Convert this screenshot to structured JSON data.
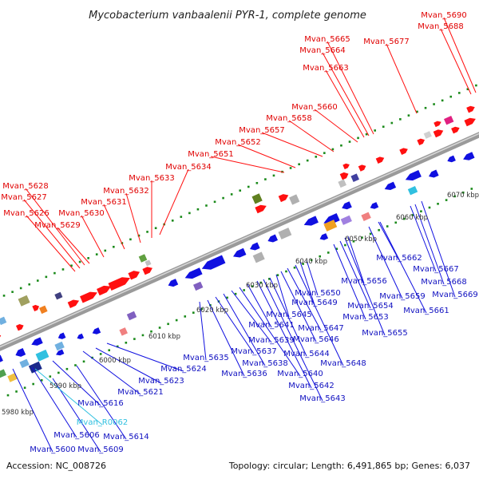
{
  "title": "Mycobacterium vanbaalenii PYR-1, complete genome",
  "footer": {
    "accession": "Accession: NC_008726",
    "summary": "Topology: circular; Length: 6,491,865 bp; Genes: 6,037"
  },
  "ticks": [
    "5980 kbp",
    "5990 kbp",
    "6000 kbp",
    "6010 kbp",
    "6020 kbp",
    "6030 kbp",
    "6040 kbp",
    "6050 kbp",
    "6060 kbp",
    "6070 kbp"
  ],
  "top_labels": [
    "Mvan_5626",
    "Mvan_5627",
    "Mvan_5628",
    "Mvan_5629",
    "Mvan_5630",
    "Mvan_5631",
    "Mvan_5632",
    "Mvan_5633",
    "Mvan_5634",
    "Mvan_5651",
    "Mvan_5652",
    "Mvan_5657",
    "Mvan_5658",
    "Mvan_5660",
    "Mvan_5663",
    "Mvan_5664",
    "Mvan_5665",
    "Mvan_5677",
    "Mvan_5688",
    "Mvan_5690"
  ],
  "bottom_labels": [
    "Mvan_5600",
    "Mvan_5606",
    "Mvan_5609",
    "Mvan_5614",
    "Mvan_5616",
    "Mvan_5621",
    "Mvan_5623",
    "Mvan_5624",
    "Mvan_5635",
    "Mvan_5636",
    "Mvan_5637",
    "Mvan_5638",
    "Mvan_5639",
    "Mvan_5640",
    "Mvan_5641",
    "Mvan_5642",
    "Mvan_5643",
    "Mvan_5644",
    "Mvan_5645",
    "Mvan_5646",
    "Mvan_5647",
    "Mvan_5648",
    "Mvan_5649",
    "Mvan_5650",
    "Mvan_5653",
    "Mvan_5654",
    "Mvan_5655",
    "Mvan_5656",
    "Mvan_5659",
    "Mvan_5661",
    "Mvan_5662",
    "Mvan_5667",
    "Mvan_5668",
    "Mvan_5669"
  ],
  "rna_labels": [
    "Mvan_R0062"
  ],
  "colors": {
    "forward_genes": "#ff1010",
    "reverse_genes": "#1010e0",
    "rna": "#30c0e0",
    "ticks": "#1a8a1a",
    "backbone": "#9a9a9a"
  }
}
